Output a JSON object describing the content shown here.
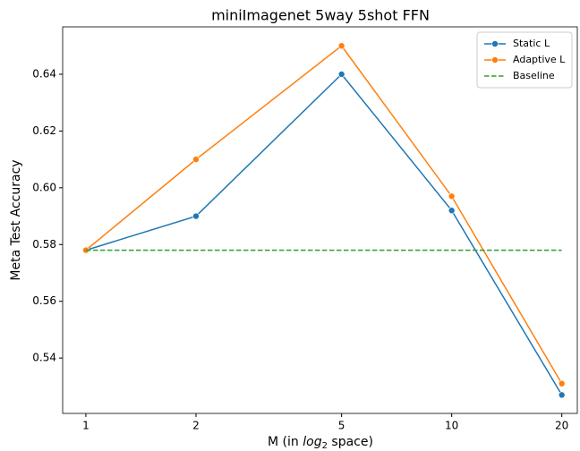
{
  "chart_data": {
    "type": "line",
    "title": "miniImagenet 5way 5shot FFN",
    "xlabel": [
      "M (in ",
      "log",
      "2",
      " space)"
    ],
    "ylabel": "Meta Test Accuracy",
    "x": [
      1,
      2,
      5,
      10,
      20
    ],
    "xscale": "log2",
    "xlim": [
      0.864,
      22.05
    ],
    "xticks": [
      1,
      2,
      5,
      10,
      20
    ],
    "ylim": [
      0.5205,
      0.6567
    ],
    "yticks": [
      {
        "value": 0.54,
        "label": "0.54"
      },
      {
        "value": 0.56,
        "label": "0.56"
      },
      {
        "value": 0.58,
        "label": "0.58"
      },
      {
        "value": 0.6,
        "label": "0.60"
      },
      {
        "value": 0.62,
        "label": "0.62"
      },
      {
        "value": 0.64,
        "label": "0.64"
      }
    ],
    "legend": "upper right",
    "series": [
      {
        "name": "Static L",
        "color": "#1f77b4",
        "linestyle": "solid",
        "marker": true,
        "values": [
          0.578,
          0.59,
          0.64,
          0.592,
          0.527
        ]
      },
      {
        "name": "Adaptive L",
        "color": "#ff7f0e",
        "linestyle": "solid",
        "marker": true,
        "values": [
          0.578,
          0.61,
          0.65,
          0.597,
          0.531
        ]
      },
      {
        "name": "Baseline",
        "color": "#2ca02c",
        "linestyle": "dashed",
        "marker": false,
        "values": [
          0.578,
          0.578,
          0.578,
          0.578,
          0.578
        ]
      }
    ]
  }
}
